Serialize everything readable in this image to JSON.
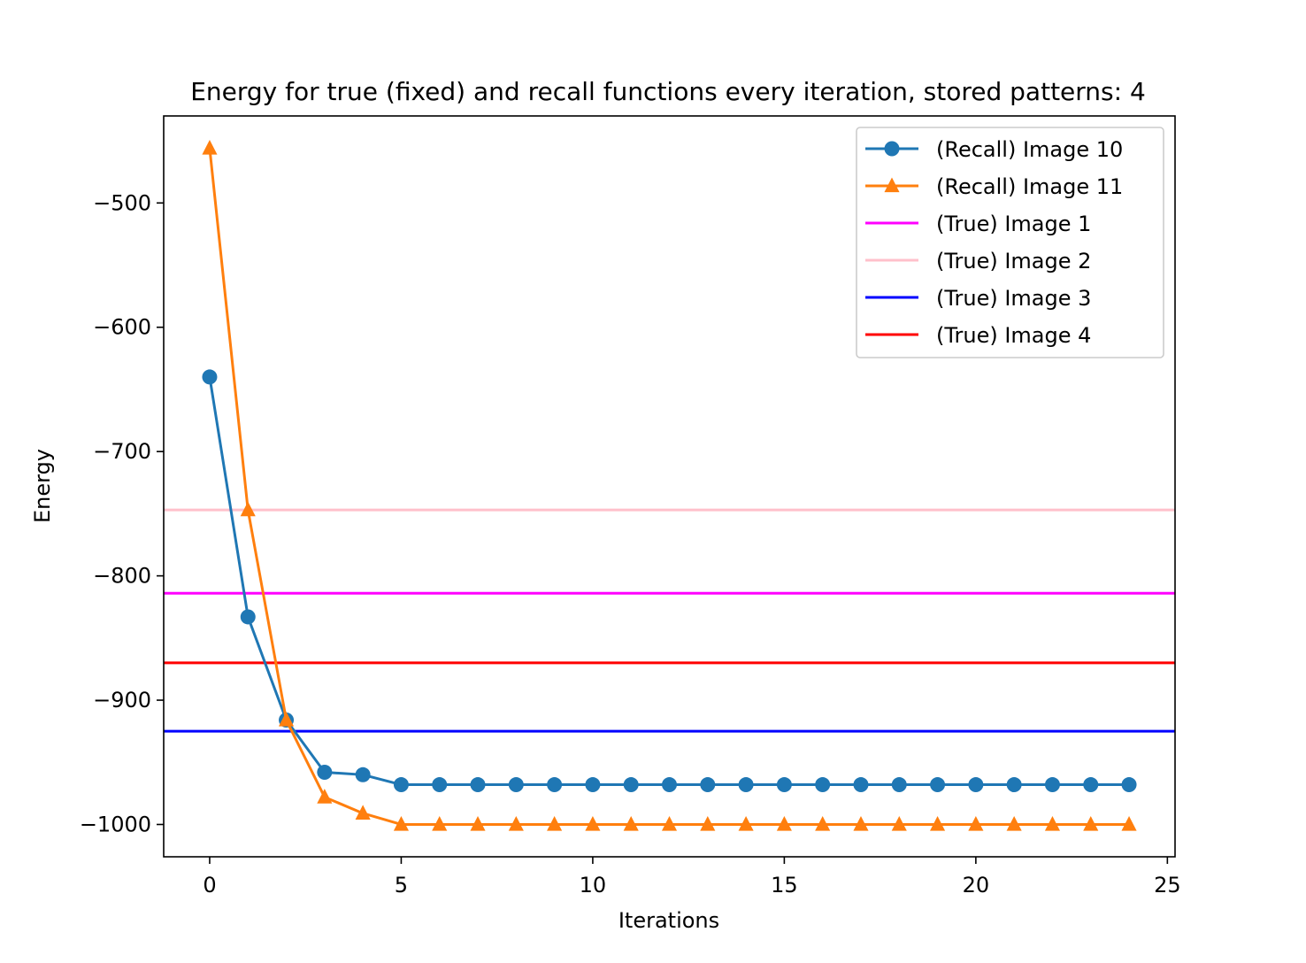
{
  "chart_data": {
    "type": "line",
    "title": "Energy for true (fixed) and recall functions every iteration, stored patterns: 4",
    "xlabel": "Iterations",
    "ylabel": "Energy",
    "xlim": [
      -1.2,
      25.2
    ],
    "ylim": [
      -1026,
      -430
    ],
    "xticks": [
      0,
      5,
      10,
      15,
      20,
      25
    ],
    "yticks": [
      -500,
      -600,
      -700,
      -800,
      -900,
      -1000
    ],
    "legend_position": "top-right",
    "grid": false,
    "series": [
      {
        "name": "(Recall) Image 10",
        "kind": "line",
        "marker": "circle",
        "color": "#1f77b4",
        "x": [
          0,
          1,
          2,
          3,
          4,
          5,
          6,
          7,
          8,
          9,
          10,
          11,
          12,
          13,
          14,
          15,
          16,
          17,
          18,
          19,
          20,
          21,
          22,
          23,
          24
        ],
        "values": [
          -640,
          -833,
          -916,
          -958,
          -960,
          -968,
          -968,
          -968,
          -968,
          -968,
          -968,
          -968,
          -968,
          -968,
          -968,
          -968,
          -968,
          -968,
          -968,
          -968,
          -968,
          -968,
          -968,
          -968,
          -968
        ]
      },
      {
        "name": "(Recall) Image 11",
        "kind": "line",
        "marker": "triangle",
        "color": "#ff7f0e",
        "x": [
          0,
          1,
          2,
          3,
          4,
          5,
          6,
          7,
          8,
          9,
          10,
          11,
          12,
          13,
          14,
          15,
          16,
          17,
          18,
          19,
          20,
          21,
          22,
          23,
          24
        ],
        "values": [
          -456,
          -747,
          -916,
          -978,
          -991,
          -1000,
          -1000,
          -1000,
          -1000,
          -1000,
          -1000,
          -1000,
          -1000,
          -1000,
          -1000,
          -1000,
          -1000,
          -1000,
          -1000,
          -1000,
          -1000,
          -1000,
          -1000,
          -1000,
          -1000
        ]
      },
      {
        "name": "(True) Image 1",
        "kind": "hline",
        "color": "#ff00ff",
        "value": -814
      },
      {
        "name": "(True) Image 2",
        "kind": "hline",
        "color": "#ffc0cb",
        "value": -747
      },
      {
        "name": "(True) Image 3",
        "kind": "hline",
        "color": "#0000ff",
        "value": -925
      },
      {
        "name": "(True) Image 4",
        "kind": "hline",
        "color": "#ff0000",
        "value": -870
      }
    ]
  }
}
